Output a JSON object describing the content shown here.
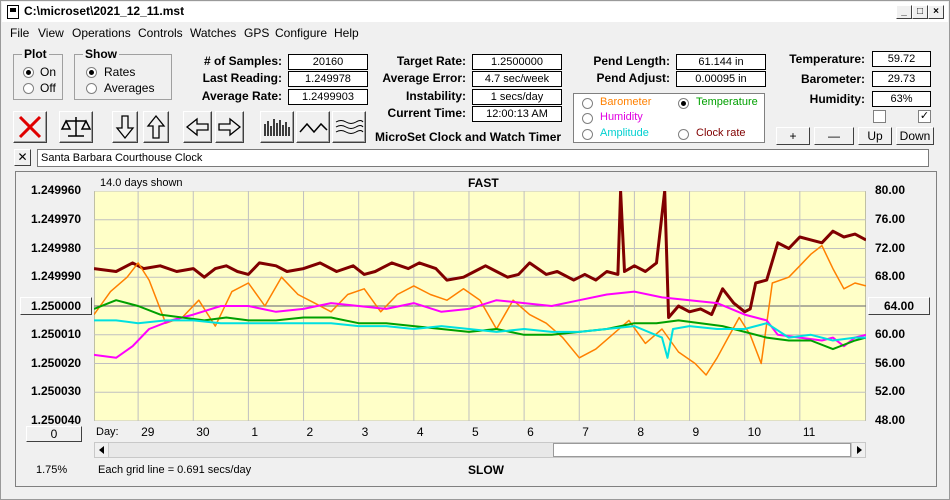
{
  "window": {
    "title": "C:\\microset\\2021_12_11.mst"
  },
  "menu": [
    "File",
    "View",
    "Operations",
    "Controls",
    "Watches",
    "GPS",
    "Configure",
    "Help"
  ],
  "plot_group": {
    "label": "Plot",
    "on": "On",
    "off": "Off",
    "selected": "On"
  },
  "show_group": {
    "label": "Show",
    "rates": "Rates",
    "averages": "Averages",
    "selected": "Rates"
  },
  "stats": {
    "samples_label": "# of Samples:",
    "samples": "20160",
    "last_label": "Last Reading:",
    "last": "1.249978",
    "avg_label": "Average Rate:",
    "avg": "1.2499903",
    "target_label": "Target Rate:",
    "target": "1.2500000",
    "error_label": "Average Error:",
    "error": "4.7 sec/week",
    "instab_label": "Instability:",
    "instab": "1 secs/day",
    "time_label": "Current Time:",
    "time": "12:00:13 AM",
    "pend_len_label": "Pend Length:",
    "pend_len": "61.144 in",
    "pend_adj_label": "Pend Adjust:",
    "pend_adj": "0.00095 in",
    "temp_label": "Temperature:",
    "temp": "59.72",
    "baro_label": "Barometer:",
    "baro": "29.73",
    "hum_label": "Humidity:",
    "hum": "63%"
  },
  "product_title": "MicroSet Clock and Watch Timer",
  "sensor_options": {
    "barometer": "Barometer",
    "temperature": "Temperature",
    "humidity": "Humidity",
    "amplitude": "Amplitude",
    "clockrate": "Clock rate",
    "selected": "Temperature"
  },
  "sensor_buttons": {
    "plus": "+",
    "minus": "—",
    "up": "Up",
    "down": "Down"
  },
  "checkboxes": [
    {
      "checked": false
    },
    {
      "checked": true
    }
  ],
  "source_label": "Santa Barbara Courthouse Clock",
  "colors": {
    "plot_bg": "#ffffc8",
    "grid": "#c0c0c0",
    "clockrate": "#800000",
    "barometer": "#ff8000",
    "temperature": "#00a000",
    "humidity": "#ff00ff",
    "amplitude": "#00e0e0",
    "refline": "#808080"
  },
  "chart_data": {
    "type": "line",
    "days_shown": "14.0 days shown",
    "top_label": "FAST",
    "bottom_label": "SLOW",
    "grid_note": "Each grid line = 0.691 secs/day",
    "left_percent": "1.75%",
    "left_ticks": [
      "1.249960",
      "1.249970",
      "1.249980",
      "1.249990",
      "1.250000",
      "1.250010",
      "1.250020",
      "1.250030",
      "1.250040"
    ],
    "left_range": [
      1.24996,
      1.25004
    ],
    "right_ticks": [
      "80.00",
      "76.00",
      "72.00",
      "68.00",
      "64.00",
      "60.00",
      "56.00",
      "52.00",
      "48.00"
    ],
    "right_range": [
      48,
      80
    ],
    "ref_left_button": "1.250000",
    "ref_right_button": "64.00",
    "zero_button": "0",
    "xaxis_label": "Day:",
    "day_labels": [
      "29",
      "30",
      "1",
      "2",
      "3",
      "4",
      "5",
      "6",
      "7",
      "8",
      "9",
      "10",
      "11"
    ],
    "day_range": [
      28.2,
      42.2
    ],
    "day_positions": [
      29,
      30,
      31,
      32,
      33,
      34,
      35,
      36,
      37,
      38,
      39,
      40,
      41
    ],
    "series": [
      {
        "name": "Clock rate",
        "key": "clockrate",
        "axis": "left",
        "width": 3,
        "points": [
          [
            28.2,
            1.249987
          ],
          [
            28.6,
            1.249988
          ],
          [
            28.9,
            1.249985
          ],
          [
            29.1,
            1.249987
          ],
          [
            29.4,
            1.249986
          ],
          [
            29.7,
            1.249988
          ],
          [
            30.0,
            1.249987
          ],
          [
            30.2,
            1.24999
          ],
          [
            30.4,
            1.249987
          ],
          [
            30.6,
            1.249986
          ],
          [
            30.8,
            1.249988
          ],
          [
            31.0,
            1.249989
          ],
          [
            31.2,
            1.249985
          ],
          [
            31.5,
            1.249986
          ],
          [
            31.7,
            1.249988
          ],
          [
            32.0,
            1.249987
          ],
          [
            32.3,
            1.249985
          ],
          [
            32.6,
            1.249988
          ],
          [
            32.9,
            1.249986
          ],
          [
            33.1,
            1.249989
          ],
          [
            33.3,
            1.249988
          ],
          [
            33.6,
            1.249985
          ],
          [
            33.9,
            1.249987
          ],
          [
            34.1,
            1.249985
          ],
          [
            34.4,
            1.249987
          ],
          [
            34.6,
            1.249991
          ],
          [
            34.9,
            1.24999
          ],
          [
            35.1,
            1.249988
          ],
          [
            35.3,
            1.249986
          ],
          [
            35.5,
            1.249988
          ],
          [
            35.7,
            1.24999
          ],
          [
            35.9,
            1.249989
          ],
          [
            36.1,
            1.249985
          ],
          [
            36.4,
            1.249989
          ],
          [
            36.6,
            1.249988
          ],
          [
            36.9,
            1.249991
          ],
          [
            37.1,
            1.249989
          ],
          [
            37.3,
            1.249991
          ],
          [
            37.5,
            1.249988
          ],
          [
            37.7,
            1.249989
          ],
          [
            37.75,
            1.24996
          ],
          [
            37.82,
            1.249988
          ],
          [
            38.0,
            1.249986
          ],
          [
            38.2,
            1.249988
          ],
          [
            38.4,
            1.249985
          ],
          [
            38.55,
            1.24996
          ],
          [
            38.62,
            1.250004
          ],
          [
            38.8,
            1.25
          ],
          [
            39.0,
            1.250002
          ],
          [
            39.2,
            1.250001
          ],
          [
            39.4,
            1.250003
          ],
          [
            39.6,
            1.249994
          ],
          [
            39.8,
            1.249999
          ],
          [
            40.0,
            1.250002
          ],
          [
            40.1,
            1.250001
          ],
          [
            40.2,
            1.249992
          ],
          [
            40.4,
            1.249991
          ],
          [
            40.6,
            1.249978
          ],
          [
            40.8,
            1.24998
          ],
          [
            41.0,
            1.249976
          ],
          [
            41.2,
            1.249977
          ],
          [
            41.4,
            1.249978
          ],
          [
            41.6,
            1.249974
          ],
          [
            41.8,
            1.249976
          ],
          [
            42.0,
            1.249975
          ],
          [
            42.2,
            1.249977
          ]
        ]
      },
      {
        "name": "Barometer",
        "key": "barometer",
        "axis": "left",
        "width": 1.5,
        "points": [
          [
            28.2,
            1.250003
          ],
          [
            28.5,
            1.249995
          ],
          [
            28.8,
            1.24999
          ],
          [
            29.0,
            1.249985
          ],
          [
            29.2,
            1.249991
          ],
          [
            29.5,
            1.250006
          ],
          [
            29.8,
            1.250004
          ],
          [
            30.1,
            1.249998
          ],
          [
            30.4,
            1.250007
          ],
          [
            30.7,
            1.249995
          ],
          [
            31.0,
            1.249992
          ],
          [
            31.3,
            1.25
          ],
          [
            31.6,
            1.24999
          ],
          [
            31.9,
            1.249996
          ],
          [
            32.2,
            1.249999
          ],
          [
            32.5,
            1.250002
          ],
          [
            32.8,
            1.249996
          ],
          [
            33.1,
            1.249994
          ],
          [
            33.4,
            1.250002
          ],
          [
            33.7,
            1.249996
          ],
          [
            34.0,
            1.249993
          ],
          [
            34.3,
            1.249996
          ],
          [
            34.6,
            1.249998
          ],
          [
            34.9,
            1.249994
          ],
          [
            35.2,
            1.249998
          ],
          [
            35.5,
            1.250008
          ],
          [
            35.8,
            1.249998
          ],
          [
            36.1,
            1.250003
          ],
          [
            36.4,
            1.250006
          ],
          [
            36.7,
            1.250011
          ],
          [
            37.0,
            1.250018
          ],
          [
            37.3,
            1.250015
          ],
          [
            37.6,
            1.25001
          ],
          [
            37.9,
            1.250005
          ],
          [
            38.2,
            1.250013
          ],
          [
            38.5,
            1.250008
          ],
          [
            38.8,
            1.250016
          ],
          [
            39.1,
            1.25002
          ],
          [
            39.3,
            1.250024
          ],
          [
            39.5,
            1.250018
          ],
          [
            39.7,
            1.250011
          ],
          [
            39.9,
            1.250004
          ],
          [
            40.1,
            1.25001
          ],
          [
            40.3,
            1.25002
          ],
          [
            40.5,
            1.249992
          ],
          [
            40.8,
            1.24999
          ],
          [
            41.0,
            1.249986
          ],
          [
            41.2,
            1.249982
          ],
          [
            41.4,
            1.249979
          ],
          [
            41.6,
            1.249987
          ],
          [
            41.8,
            1.249994
          ],
          [
            42.0,
            1.249992
          ],
          [
            42.2,
            1.249993
          ]
        ]
      },
      {
        "name": "Humidity",
        "key": "humidity",
        "axis": "left",
        "width": 2,
        "points": [
          [
            28.2,
            1.250017
          ],
          [
            28.6,
            1.250018
          ],
          [
            28.9,
            1.250014
          ],
          [
            29.2,
            1.250008
          ],
          [
            29.6,
            1.250005
          ],
          [
            30.0,
            1.250003
          ],
          [
            30.5,
            1.25
          ],
          [
            31.0,
            1.25
          ],
          [
            31.5,
            1.250002
          ],
          [
            32.0,
            1.250001
          ],
          [
            32.5,
            1.249999
          ],
          [
            33.0,
            1.25
          ],
          [
            33.5,
            1.250001
          ],
          [
            34.0,
            1.249999
          ],
          [
            34.5,
            1.250002
          ],
          [
            35.0,
            1.250001
          ],
          [
            35.5,
            1.249998
          ],
          [
            36.0,
            1.249999
          ],
          [
            36.5,
            1.25
          ],
          [
            37.0,
            1.249998
          ],
          [
            37.5,
            1.249996
          ],
          [
            38.0,
            1.249995
          ],
          [
            38.5,
            1.249997
          ],
          [
            39.0,
            1.249998
          ],
          [
            39.5,
            1.249999
          ],
          [
            40.0,
            1.250003
          ],
          [
            40.4,
            1.250005
          ],
          [
            40.6,
            1.25001
          ],
          [
            41.0,
            1.250011
          ],
          [
            41.4,
            1.250012
          ],
          [
            41.6,
            1.250011
          ],
          [
            41.8,
            1.250014
          ],
          [
            42.0,
            1.250011
          ],
          [
            42.2,
            1.25001
          ]
        ]
      },
      {
        "name": "Temperature",
        "key": "temperature",
        "axis": "left",
        "width": 2,
        "points": [
          [
            28.2,
            1.250001
          ],
          [
            28.6,
            1.249998
          ],
          [
            29.0,
            1.25
          ],
          [
            29.4,
            1.250003
          ],
          [
            29.8,
            1.250004
          ],
          [
            30.2,
            1.250005
          ],
          [
            30.6,
            1.250004
          ],
          [
            31.0,
            1.250005
          ],
          [
            31.5,
            1.250005
          ],
          [
            32.0,
            1.250004
          ],
          [
            32.5,
            1.250004
          ],
          [
            33.0,
            1.250006
          ],
          [
            33.5,
            1.250006
          ],
          [
            34.0,
            1.250007
          ],
          [
            34.5,
            1.250008
          ],
          [
            35.0,
            1.250009
          ],
          [
            35.5,
            1.250008
          ],
          [
            36.0,
            1.25001
          ],
          [
            36.5,
            1.25001
          ],
          [
            37.0,
            1.250009
          ],
          [
            37.5,
            1.250008
          ],
          [
            38.0,
            1.250006
          ],
          [
            38.4,
            1.250006
          ],
          [
            38.8,
            1.250005
          ],
          [
            39.2,
            1.250006
          ],
          [
            39.6,
            1.250007
          ],
          [
            40.0,
            1.250009
          ],
          [
            40.4,
            1.250011
          ],
          [
            40.8,
            1.250012
          ],
          [
            41.2,
            1.250012
          ],
          [
            41.6,
            1.250015
          ],
          [
            42.0,
            1.250012
          ],
          [
            42.2,
            1.250011
          ]
        ]
      },
      {
        "name": "Amplitude",
        "key": "amplitude",
        "axis": "left",
        "width": 2,
        "points": [
          [
            28.2,
            1.250005
          ],
          [
            28.6,
            1.250005
          ],
          [
            29.0,
            1.250006
          ],
          [
            29.5,
            1.250005
          ],
          [
            30.0,
            1.250005
          ],
          [
            30.5,
            1.250006
          ],
          [
            31.0,
            1.250006
          ],
          [
            31.5,
            1.250006
          ],
          [
            32.0,
            1.250006
          ],
          [
            32.5,
            1.250006
          ],
          [
            33.0,
            1.250007
          ],
          [
            33.5,
            1.250007
          ],
          [
            34.0,
            1.250008
          ],
          [
            34.5,
            1.250007
          ],
          [
            35.0,
            1.250008
          ],
          [
            35.5,
            1.250009
          ],
          [
            36.0,
            1.250008
          ],
          [
            36.5,
            1.250009
          ],
          [
            37.0,
            1.250009
          ],
          [
            37.5,
            1.250008
          ],
          [
            38.0,
            1.250007
          ],
          [
            38.5,
            1.250011
          ],
          [
            38.6,
            1.250018
          ],
          [
            38.7,
            1.250008
          ],
          [
            39.0,
            1.250007
          ],
          [
            39.5,
            1.250008
          ],
          [
            40.0,
            1.250008
          ],
          [
            40.4,
            1.250006
          ],
          [
            40.8,
            1.250011
          ],
          [
            41.2,
            1.25001
          ],
          [
            41.6,
            1.250012
          ],
          [
            42.0,
            1.250011
          ],
          [
            42.2,
            1.250011
          ]
        ]
      }
    ]
  }
}
